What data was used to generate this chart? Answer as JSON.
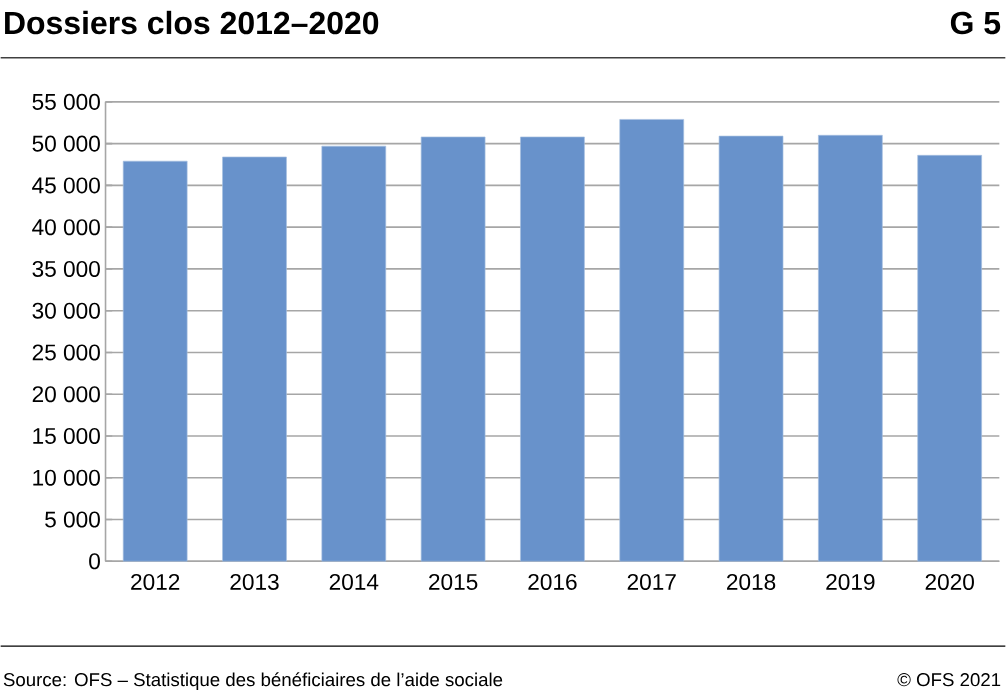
{
  "chart_data": {
    "type": "bar",
    "title": "Dossiers clos 2012–2020",
    "categories": [
      "2012",
      "2013",
      "2014",
      "2015",
      "2016",
      "2017",
      "2018",
      "2019",
      "2020"
    ],
    "values": [
      47900,
      48400,
      49700,
      50800,
      50800,
      52900,
      50900,
      51000,
      48600
    ],
    "color": "#6892cb",
    "ylim": [
      0,
      55000
    ],
    "yticks": [
      0,
      {
        "value": 5000,
        "label": "5 000"
      },
      {
        "value": 10000,
        "label": "10 000"
      },
      {
        "value": 15000,
        "label": "15 000"
      },
      {
        "value": 20000,
        "label": "20 000"
      },
      {
        "value": 25000,
        "label": "25 000"
      },
      {
        "value": 30000,
        "label": "30 000"
      },
      {
        "value": 35000,
        "label": "35 000"
      },
      {
        "value": 40000,
        "label": "40 000"
      },
      {
        "value": 45000,
        "label": "45 000"
      },
      {
        "value": 50000,
        "label": "50 000"
      },
      {
        "value": 55000,
        "label": "55 000"
      }
    ],
    "grid": "y",
    "annotations": [
      "G 5",
      "Source: OFS – Statistique des bénéficiaires de l’aide sociale",
      "© OFS 2021"
    ]
  }
}
